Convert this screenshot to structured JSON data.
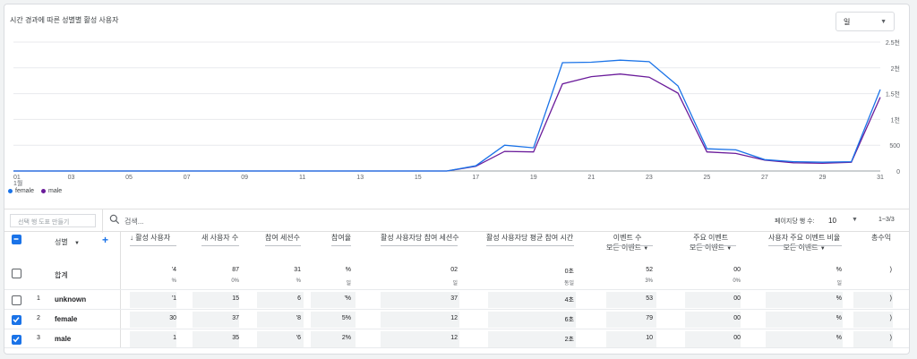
{
  "chart": {
    "title": "시간 경과에 따른 성별별 활성 사용자",
    "period": "일"
  },
  "chart_data": {
    "type": "line",
    "x": [
      "01",
      "02",
      "03",
      "04",
      "05",
      "06",
      "07",
      "08",
      "09",
      "10",
      "11",
      "12",
      "13",
      "14",
      "15",
      "16",
      "17",
      "18",
      "19",
      "20",
      "21",
      "22",
      "23",
      "24",
      "25",
      "26",
      "27",
      "28",
      "29",
      "30",
      "31"
    ],
    "x_ticks": [
      "01",
      "03",
      "05",
      "07",
      "09",
      "11",
      "13",
      "15",
      "17",
      "19",
      "21",
      "23",
      "25",
      "27",
      "29",
      "31"
    ],
    "x_sub": "1월",
    "y_ticks": [
      "0",
      "500",
      "1천",
      "1.5천",
      "2천",
      "2.5천"
    ],
    "ylim": [
      0,
      2500
    ],
    "series": [
      {
        "name": "female",
        "color": "#1a73e8",
        "values": [
          0,
          0,
          0,
          0,
          0,
          0,
          0,
          0,
          0,
          0,
          0,
          0,
          0,
          0,
          0,
          0,
          100,
          500,
          450,
          2100,
          2110,
          2150,
          2120,
          1650,
          430,
          410,
          220,
          180,
          170,
          180,
          1580
        ]
      },
      {
        "name": "male",
        "color": "#6a1b9a",
        "values": [
          0,
          0,
          0,
          0,
          0,
          0,
          0,
          0,
          0,
          0,
          0,
          0,
          0,
          0,
          0,
          0,
          90,
          380,
          370,
          1690,
          1830,
          1880,
          1820,
          1510,
          370,
          340,
          210,
          160,
          150,
          170,
          1430
        ]
      }
    ]
  },
  "legend": [
    {
      "label": "female",
      "color": "#1a73e8"
    },
    {
      "label": "male",
      "color": "#6a1b9a"
    }
  ],
  "toolbar": {
    "create_placeholder": "선택 행 도표 만들기",
    "search_placeholder": "검색...",
    "rows_per_page_label": "페이지당 행 수:",
    "rows_per_page_value": "10",
    "range": "1~3/3"
  },
  "table": {
    "columns": {
      "dimension": "성별",
      "c1": "활성 사용자",
      "c2": "새 사용자 수",
      "c3": "참여 세션수",
      "c4": "참여율",
      "c5": "활성 사용자당 참여 세션수",
      "c6": "활성 사용자당 평균 참여 시간",
      "c7": "이벤트 수",
      "c7_sub": "모든 이벤트",
      "c8": "주요 이벤트",
      "c8_sub": "모든 이벤트",
      "c9": "사용자 주요 이벤트 비율",
      "c9_sub": "모든 이벤트",
      "c10": "총수익"
    },
    "total": {
      "label": "합계",
      "c1": "'4",
      "c1s": "%",
      "c2": "87",
      "c2s": "0%",
      "c3": "31",
      "c3s": "%",
      "c4": "%",
      "c4s": "일",
      "c5": "02",
      "c5s": "일",
      "c6": "0초",
      "c6s": "동일",
      "c7": "52",
      "c7s": "3%",
      "c8": "00",
      "c8s": "0%",
      "c9": "%",
      "c9s": "일",
      "c10": ")"
    },
    "rows": [
      {
        "index": "1",
        "label": "unknown",
        "c1": "'1",
        "c2": "15",
        "c3": "6",
        "c4": "'%",
        "c5": "37",
        "c6": "4초",
        "c7": "53",
        "c8": "00",
        "c9": "%",
        "c10": ")"
      },
      {
        "index": "2",
        "label": "female",
        "c1": "30",
        "c2": "37",
        "c3": "'8",
        "c4": "5%",
        "c5": "12",
        "c6": "6초",
        "c7": "79",
        "c8": "00",
        "c9": "%",
        "c10": ")"
      },
      {
        "index": "3",
        "label": "male",
        "c1": "1",
        "c2": "35",
        "c3": "'6",
        "c4": "2%",
        "c5": "12",
        "c6": "2초",
        "c7": "10",
        "c8": "00",
        "c9": "%",
        "c10": ")"
      }
    ]
  }
}
